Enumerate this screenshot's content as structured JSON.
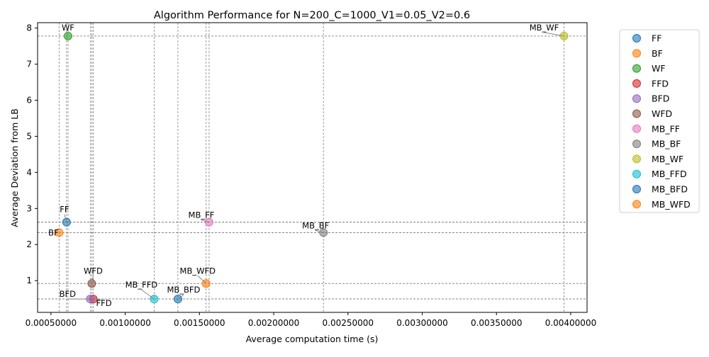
{
  "chart_data": {
    "type": "scatter",
    "title": "Algorithm Performance for N=200_C=1000_V1=0.05_V2=0.6",
    "xlabel": "Average computation time (s)",
    "ylabel": "Average Deviation from LB",
    "xlim": [
      0.00041,
      0.00411
    ],
    "ylim": [
      0.12,
      8.15
    ],
    "x_ticks": [
      0.0005,
      0.001,
      0.0015,
      0.002,
      0.0025,
      0.003,
      0.0035,
      0.004
    ],
    "x_tick_labels": [
      "0.00050000",
      "0.00100000",
      "0.00150000",
      "0.00200000",
      "0.00250000",
      "0.00300000",
      "0.00350000",
      "0.00400000"
    ],
    "y_ticks": [
      1,
      2,
      3,
      4,
      5,
      6,
      7,
      8
    ],
    "y_tick_labels": [
      "1",
      "2",
      "3",
      "4",
      "5",
      "6",
      "7",
      "8"
    ],
    "grid": "dashed reference lines at each point",
    "legend_position": "outside-right",
    "series": [
      {
        "name": "FF",
        "x": 0.000605,
        "y": 2.62,
        "color": "#1f77b4"
      },
      {
        "name": "BF",
        "x": 0.000555,
        "y": 2.33,
        "color": "#ff7f0e"
      },
      {
        "name": "WF",
        "x": 0.000615,
        "y": 7.78,
        "color": "#2ca02c"
      },
      {
        "name": "FFD",
        "x": 0.000785,
        "y": 0.49,
        "color": "#d62728"
      },
      {
        "name": "BFD",
        "x": 0.000765,
        "y": 0.49,
        "color": "#9467bd"
      },
      {
        "name": "WFD",
        "x": 0.000775,
        "y": 0.92,
        "color": "#8c564b"
      },
      {
        "name": "MB_FF",
        "x": 0.001565,
        "y": 2.62,
        "color": "#e377c2"
      },
      {
        "name": "MB_BF",
        "x": 0.002335,
        "y": 2.33,
        "color": "#7f7f7f"
      },
      {
        "name": "MB_WF",
        "x": 0.003955,
        "y": 7.78,
        "color": "#bcbd22"
      },
      {
        "name": "MB_FFD",
        "x": 0.001195,
        "y": 0.49,
        "color": "#17becf"
      },
      {
        "name": "MB_BFD",
        "x": 0.001355,
        "y": 0.49,
        "color": "#1f77b4"
      },
      {
        "name": "MB_WFD",
        "x": 0.001545,
        "y": 0.92,
        "color": "#ff7f0e"
      }
    ]
  }
}
